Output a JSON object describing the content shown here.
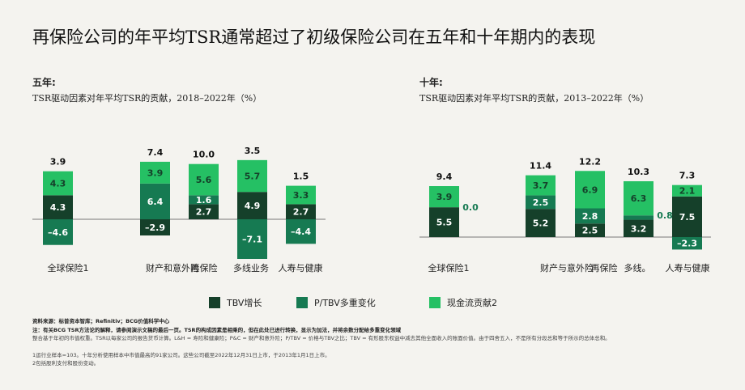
{
  "title": "再保险公司的年平均TSR通常超过了初级保险公司在五年和十年期内的表现",
  "colors": {
    "tbv": "#15402a",
    "pt": "#167a52",
    "cf": "#25c064",
    "axis": "#777777",
    "bg": "#f4f3ef"
  },
  "legend": {
    "tbv": "TBV增长",
    "pt": "P/TBV多重变化",
    "cf": "现金流贡献2"
  },
  "footnotes": {
    "source": "资料来源：标普资本智库；Refinitiv；BCG价值科学中心",
    "note": "注：有关BCG TSR方法论的解释，请参阅演示文稿的最后一页。TSR的构成因素是相乘的，但在此处已进行转换，显示为加法，并将余数分配给多重变化领域",
    "basis": "整合基于年初的市值权重。TSR以每家公司的报告货币计算。L&H = 寿险和健康险；P&C = 财产和意外险；P/TBV = 价格与TBV之比；TBV = 有形股东权益中减去其他全面收入的账面价值。由于四舍五入，不是所有分段总和等于所示的总体总和。",
    "fn1": "1运行业样本=103。十年分析使用样本中市值最高的91家公司。这些公司截至2022年12月31日上市，于2013年1月1日上市。",
    "fn2": "2包括股利支付和股份变动。"
  },
  "chart_data": [
    {
      "type": "bar",
      "stacked": true,
      "panel": "五年:",
      "title": "TSR驱动因素对年平均TSR的贡献，2018–2022年（%）",
      "categories": [
        "全球保险1",
        "财产和意外险",
        "再保险",
        "多线业务",
        "人寿与健康"
      ],
      "series": [
        {
          "name": "TBV增长",
          "values": [
            4.3,
            -2.9,
            2.7,
            4.9,
            2.7
          ]
        },
        {
          "name": "P/TBV多重变化",
          "values": [
            -4.6,
            6.4,
            1.6,
            -7.1,
            -4.4
          ]
        },
        {
          "name": "现金流贡献2",
          "values": [
            4.3,
            3.9,
            5.6,
            5.7,
            3.3
          ]
        }
      ],
      "totals": [
        3.9,
        7.4,
        10.0,
        3.5,
        1.5
      ],
      "total_labels": [
        "3.9",
        "7.4",
        "10.0",
        "3.5",
        "1.5"
      ],
      "segment_labels": [
        [
          "4.3",
          "–4.6",
          "4.3"
        ],
        [
          "–2.9",
          "6.4",
          "3.9"
        ],
        [
          "2.7",
          "1.6",
          "5.6"
        ],
        [
          "4.9",
          "–7.1",
          "5.7"
        ],
        [
          "2.7",
          "–4.4",
          "3.3"
        ]
      ]
    },
    {
      "type": "bar",
      "stacked": true,
      "panel": "十年:",
      "title": "TSR驱动因素对年平均TSR的贡献，2013–2022年（%）",
      "categories": [
        "全球保险1",
        "财产与意外险",
        "再保险",
        "多线。",
        "人寿与健康"
      ],
      "series": [
        {
          "name": "TBV增长",
          "values": [
            5.5,
            5.2,
            2.5,
            3.2,
            7.5
          ]
        },
        {
          "name": "P/TBV多重变化",
          "values": [
            0.0,
            2.5,
            2.8,
            0.8,
            -2.3
          ]
        },
        {
          "name": "现金流贡献2",
          "values": [
            3.9,
            3.7,
            6.9,
            6.3,
            2.1
          ]
        }
      ],
      "totals": [
        9.4,
        11.4,
        12.2,
        10.3,
        7.3
      ],
      "total_labels": [
        "9.4",
        "11.4",
        "12.2",
        "10.3",
        "7.3"
      ],
      "segment_labels": [
        [
          "5.5",
          "0.0",
          "3.9"
        ],
        [
          "5.2",
          "2.5",
          "3.7"
        ],
        [
          "2.5",
          "2.8",
          "6.9"
        ],
        [
          "3.2",
          "0.8",
          "6.3"
        ],
        [
          "7.5",
          "–2.3",
          "2.1"
        ]
      ]
    }
  ]
}
